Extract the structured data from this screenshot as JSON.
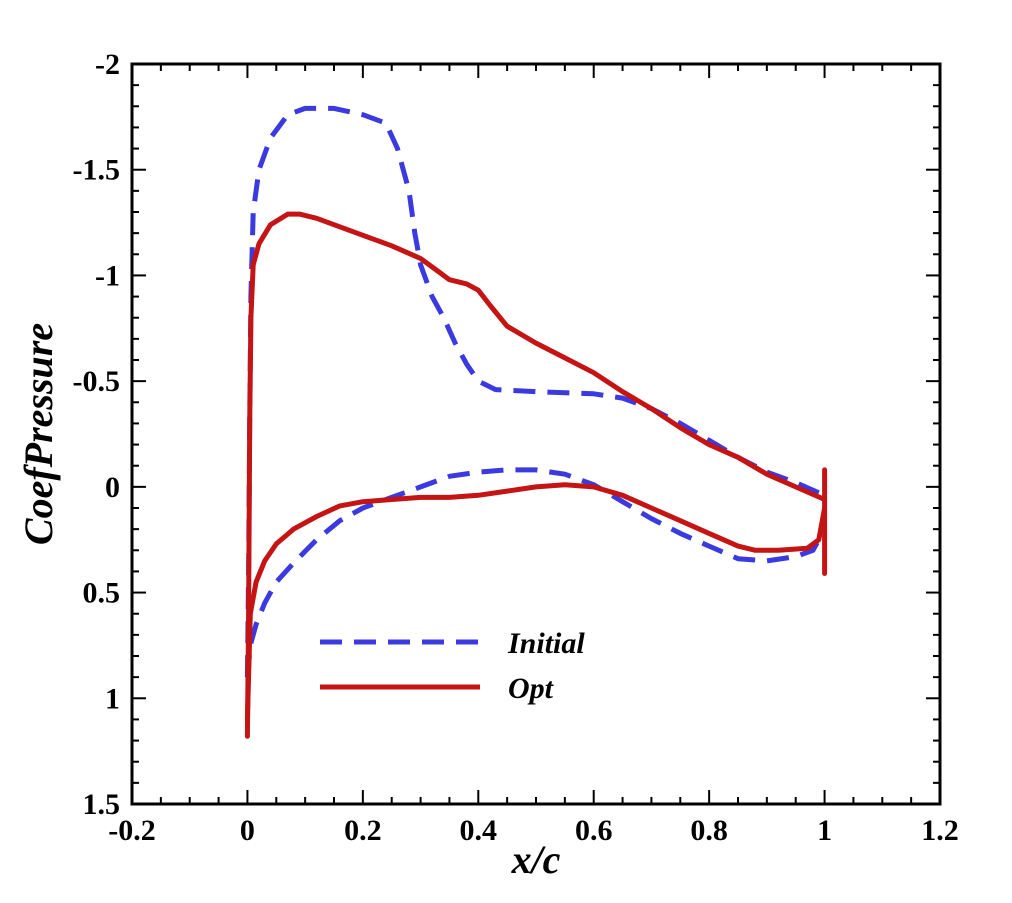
{
  "chart_data": {
    "type": "line",
    "title": "",
    "xlabel": "x/c",
    "ylabel": "CoefPressure",
    "xlim": [
      -0.2,
      1.2
    ],
    "ylim": [
      -2,
      1.5
    ],
    "y_inverted": true,
    "grid": false,
    "legend_position": "lower-center",
    "x_ticks": [
      {
        "value": -0.2,
        "label": "-0.2"
      },
      {
        "value": 0,
        "label": "0"
      },
      {
        "value": 0.2,
        "label": "0.2"
      },
      {
        "value": 0.4,
        "label": "0.4"
      },
      {
        "value": 0.6,
        "label": "0.6"
      },
      {
        "value": 0.8,
        "label": "0.8"
      },
      {
        "value": 1,
        "label": "1"
      },
      {
        "value": 1.2,
        "label": "1.2"
      }
    ],
    "y_ticks": [
      {
        "value": -2,
        "label": "-2"
      },
      {
        "value": -1.5,
        "label": "-1.5"
      },
      {
        "value": -1,
        "label": "-1"
      },
      {
        "value": -0.5,
        "label": "-0.5"
      },
      {
        "value": 0,
        "label": "0"
      },
      {
        "value": 0.5,
        "label": "0.5"
      },
      {
        "value": 1,
        "label": "1"
      },
      {
        "value": 1.5,
        "label": "1.5"
      }
    ],
    "series": [
      {
        "name": "Initial",
        "color": "#3a3ae0",
        "dash": "dashed",
        "segments": [
          [
            [
              0.0,
              0.9
            ],
            [
              0.002,
              0.4
            ],
            [
              0.004,
              -0.3
            ],
            [
              0.006,
              -0.9
            ],
            [
              0.01,
              -1.3
            ],
            [
              0.02,
              -1.5
            ],
            [
              0.04,
              -1.65
            ],
            [
              0.07,
              -1.76
            ],
            [
              0.1,
              -1.79
            ],
            [
              0.15,
              -1.79
            ],
            [
              0.2,
              -1.76
            ],
            [
              0.24,
              -1.72
            ],
            [
              0.26,
              -1.6
            ],
            [
              0.28,
              -1.4
            ],
            [
              0.29,
              -1.2
            ],
            [
              0.3,
              -1.05
            ],
            [
              0.32,
              -0.9
            ],
            [
              0.34,
              -0.8
            ],
            [
              0.36,
              -0.68
            ],
            [
              0.38,
              -0.58
            ],
            [
              0.4,
              -0.5
            ],
            [
              0.43,
              -0.46
            ],
            [
              0.5,
              -0.45
            ],
            [
              0.6,
              -0.44
            ],
            [
              0.65,
              -0.42
            ],
            [
              0.7,
              -0.37
            ],
            [
              0.75,
              -0.3
            ],
            [
              0.8,
              -0.22
            ],
            [
              0.85,
              -0.14
            ],
            [
              0.9,
              -0.07
            ],
            [
              0.95,
              -0.02
            ],
            [
              1.0,
              0.04
            ]
          ],
          [
            [
              0.0,
              0.9
            ],
            [
              0.005,
              0.75
            ],
            [
              0.015,
              0.65
            ],
            [
              0.03,
              0.55
            ],
            [
              0.05,
              0.45
            ],
            [
              0.08,
              0.36
            ],
            [
              0.12,
              0.25
            ],
            [
              0.16,
              0.16
            ],
            [
              0.2,
              0.1
            ],
            [
              0.25,
              0.05
            ],
            [
              0.3,
              0.0
            ],
            [
              0.35,
              -0.05
            ],
            [
              0.4,
              -0.07
            ],
            [
              0.45,
              -0.08
            ],
            [
              0.5,
              -0.08
            ],
            [
              0.55,
              -0.06
            ],
            [
              0.6,
              -0.01
            ],
            [
              0.65,
              0.07
            ],
            [
              0.7,
              0.15
            ],
            [
              0.75,
              0.22
            ],
            [
              0.8,
              0.28
            ],
            [
              0.85,
              0.34
            ],
            [
              0.9,
              0.35
            ],
            [
              0.95,
              0.33
            ],
            [
              0.98,
              0.3
            ],
            [
              1.0,
              0.2
            ]
          ]
        ]
      },
      {
        "name": "Opt",
        "color": "#c41414",
        "dash": "solid",
        "segments": [
          [
            [
              0.0,
              1.18
            ],
            [
              0.002,
              0.6
            ],
            [
              0.004,
              -0.3
            ],
            [
              0.006,
              -0.8
            ],
            [
              0.01,
              -1.05
            ],
            [
              0.02,
              -1.15
            ],
            [
              0.04,
              -1.24
            ],
            [
              0.07,
              -1.29
            ],
            [
              0.09,
              -1.29
            ],
            [
              0.12,
              -1.27
            ],
            [
              0.15,
              -1.24
            ],
            [
              0.2,
              -1.19
            ],
            [
              0.25,
              -1.14
            ],
            [
              0.3,
              -1.08
            ],
            [
              0.33,
              -1.02
            ],
            [
              0.35,
              -0.98
            ],
            [
              0.38,
              -0.96
            ],
            [
              0.4,
              -0.93
            ],
            [
              0.42,
              -0.86
            ],
            [
              0.45,
              -0.76
            ],
            [
              0.5,
              -0.68
            ],
            [
              0.55,
              -0.61
            ],
            [
              0.6,
              -0.54
            ],
            [
              0.65,
              -0.45
            ],
            [
              0.7,
              -0.37
            ],
            [
              0.75,
              -0.28
            ],
            [
              0.8,
              -0.2
            ],
            [
              0.85,
              -0.14
            ],
            [
              0.9,
              -0.06
            ],
            [
              0.95,
              0.0
            ],
            [
              1.0,
              0.06
            ]
          ],
          [
            [
              0.0,
              1.1
            ],
            [
              0.005,
              0.6
            ],
            [
              0.015,
              0.45
            ],
            [
              0.03,
              0.35
            ],
            [
              0.05,
              0.27
            ],
            [
              0.08,
              0.2
            ],
            [
              0.12,
              0.14
            ],
            [
              0.16,
              0.09
            ],
            [
              0.2,
              0.07
            ],
            [
              0.25,
              0.06
            ],
            [
              0.3,
              0.05
            ],
            [
              0.35,
              0.05
            ],
            [
              0.4,
              0.04
            ],
            [
              0.45,
              0.02
            ],
            [
              0.5,
              0.0
            ],
            [
              0.55,
              -0.01
            ],
            [
              0.6,
              0.0
            ],
            [
              0.65,
              0.04
            ],
            [
              0.7,
              0.1
            ],
            [
              0.75,
              0.16
            ],
            [
              0.8,
              0.22
            ],
            [
              0.85,
              0.28
            ],
            [
              0.88,
              0.3
            ],
            [
              0.92,
              0.3
            ],
            [
              0.97,
              0.29
            ],
            [
              0.99,
              0.25
            ],
            [
              1.0,
              0.1
            ]
          ],
          [
            [
              1.0,
              -0.08
            ],
            [
              1.0,
              0.41
            ]
          ]
        ]
      }
    ]
  }
}
